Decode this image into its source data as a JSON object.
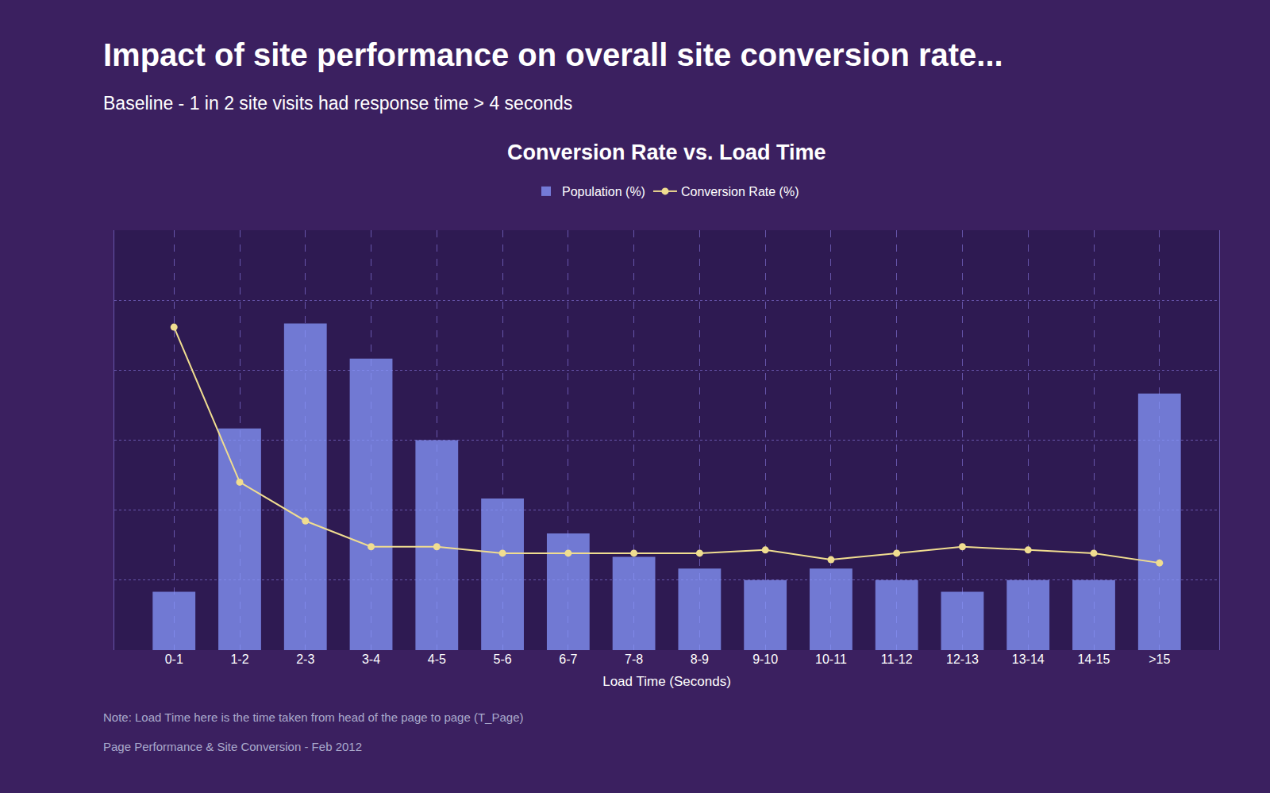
{
  "chart_data": {
    "type": "bar",
    "title": "Impact of site performance on overall site conversion rate...",
    "subtitle": "Baseline - 1 in 2 site visits had response time > 4 seconds",
    "annotations": [
      "Conversion Rate vs. Load Time",
      "Note: Load Time here is the time taken from head of the page to page (T_Page)",
      "Page Performance & Site Conversion - Feb 2012"
    ],
    "xlabel": "Load Time (Seconds)",
    "categories": [
      "0-1",
      "1-2",
      "2-3",
      "3-4",
      "4-5",
      "5-6",
      "6-7",
      "7-8",
      "8-9",
      "9-10",
      "10-11",
      "11-12",
      "12-13",
      "13-14",
      "14-15",
      ">15"
    ],
    "series": [
      {
        "name": "Population (%)",
        "type": "bar",
        "color": "#8899ff",
        "values": [
          5,
          19,
          28,
          25,
          18,
          13,
          10,
          8,
          7,
          6,
          7,
          6,
          5,
          6,
          6,
          22
        ]
      },
      {
        "name": "Conversion Rate (%)",
        "type": "line",
        "axis": "y2",
        "color": "#f0dd90",
        "marker": "circle",
        "line_style": "solid",
        "values": [
          100,
          52,
          40,
          32,
          32,
          30,
          30,
          30,
          30,
          31,
          28,
          30,
          32,
          31,
          30,
          27
        ]
      }
    ],
    "ylim": [
      0,
      36
    ],
    "yticks": [
      0,
      6,
      12,
      18,
      24,
      30,
      36
    ],
    "y2lim": [
      0,
      130
    ],
    "grid": true,
    "legend": "top",
    "tick_labels": "x"
  }
}
